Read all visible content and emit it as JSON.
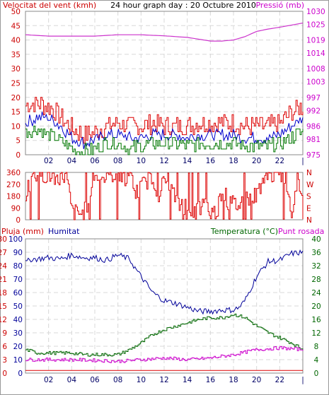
{
  "chart_data": [
    {
      "type": "line",
      "title": "24 hour graph day : 20 Octubre 2010",
      "left_axis_label": "Velocitat del vent (kmh)",
      "right_axis_label": "Pressió (mb)",
      "x_ticks": [
        "02",
        "04",
        "06",
        "08",
        "10",
        "12",
        "14",
        "16",
        "18",
        "20",
        "22",
        "|"
      ],
      "left_ticks": [
        0,
        5,
        10,
        15,
        20,
        25,
        30,
        35,
        40,
        45,
        50
      ],
      "right_ticks": [
        975,
        981,
        986,
        992,
        997,
        1003,
        1008,
        1014,
        1019,
        1025,
        1030
      ],
      "ylim_left": [
        0,
        50
      ],
      "ylim_right": [
        975,
        1030
      ],
      "grid": true,
      "colors": {
        "axis_left": "#cc0000",
        "axis_right": "#cc00cc",
        "title": "#000000",
        "gust": "#dd0000",
        "average": "#0000cc",
        "low": "#007700",
        "pressure": "#cc33cc"
      },
      "series": [
        {
          "name": "gust",
          "color": "#dd0000",
          "hours": [
            0,
            1,
            2,
            3,
            4,
            5,
            6,
            7,
            8,
            9,
            10,
            11,
            12,
            13,
            14,
            15,
            16,
            17,
            18,
            19,
            20,
            21,
            22,
            23,
            24
          ],
          "values": [
            17,
            18,
            17,
            13,
            9,
            7,
            8,
            10,
            11,
            10,
            10,
            11,
            10,
            10,
            10,
            11,
            11,
            11,
            11,
            10,
            10,
            10,
            11,
            15,
            17
          ]
        },
        {
          "name": "average",
          "color": "#0000cc",
          "hours": [
            0,
            1,
            2,
            3,
            4,
            5,
            6,
            7,
            8,
            9,
            10,
            11,
            12,
            13,
            14,
            15,
            16,
            17,
            18,
            19,
            20,
            21,
            22,
            23,
            24
          ],
          "values": [
            11,
            13,
            13,
            10,
            6,
            4,
            5,
            7,
            7,
            6,
            6,
            7,
            7,
            7,
            6,
            7,
            7,
            7,
            7,
            6,
            6,
            6,
            7,
            10,
            13
          ]
        },
        {
          "name": "low",
          "color": "#007700",
          "hours": [
            0,
            1,
            2,
            3,
            4,
            5,
            6,
            7,
            8,
            9,
            10,
            11,
            12,
            13,
            14,
            15,
            16,
            17,
            18,
            19,
            20,
            21,
            22,
            23,
            24
          ],
          "values": [
            8,
            9,
            7,
            5,
            2,
            1,
            2,
            4,
            4,
            2,
            3,
            4,
            4,
            4,
            3,
            4,
            4,
            4,
            4,
            3,
            3,
            3,
            4,
            6,
            8
          ]
        },
        {
          "name": "pressure",
          "color": "#cc33cc",
          "axis": "right",
          "hours": [
            0,
            2,
            4,
            6,
            8,
            10,
            12,
            14,
            15,
            16,
            17,
            18,
            19,
            20,
            21,
            22,
            23,
            24
          ],
          "values": [
            1021,
            1020.5,
            1020.5,
            1020.5,
            1021,
            1021,
            1020.6,
            1020,
            1019.3,
            1018.6,
            1018.6,
            1019,
            1020.3,
            1022.3,
            1023.2,
            1023.9,
            1024.7,
            1025.5
          ]
        }
      ]
    },
    {
      "type": "scatter",
      "title": "",
      "left_ticks": [
        0,
        90,
        180,
        270,
        360
      ],
      "right_ticks": [
        "N",
        "E",
        "S",
        "W",
        "N"
      ],
      "ylim": [
        0,
        360
      ],
      "colors": {
        "axis": "#cc0000",
        "series": "#dd0000"
      },
      "series": [
        {
          "name": "direction",
          "color": "#dd0000",
          "hours": [
            0,
            0.5,
            1,
            1.5,
            2,
            2.5,
            3,
            3.5,
            4,
            4.5,
            5,
            5.5,
            6,
            6.5,
            7,
            7.5,
            8,
            8.5,
            9,
            9.5,
            10,
            10.5,
            11,
            11.5,
            12,
            12.5,
            13,
            13.5,
            14,
            14.5,
            15,
            15.5,
            16,
            16.5,
            17,
            17.5,
            18,
            18.5,
            19,
            19.5,
            20,
            20.5,
            21,
            21.5,
            22,
            22.5,
            23,
            23.5,
            24
          ],
          "values": [
            200,
            340,
            350,
            340,
            345,
            300,
            340,
            330,
            60,
            50,
            40,
            180,
            330,
            340,
            300,
            345,
            350,
            320,
            340,
            200,
            250,
            300,
            320,
            200,
            300,
            250,
            150,
            100,
            120,
            50,
            80,
            120,
            50,
            60,
            240,
            130,
            120,
            110,
            180,
            150,
            200,
            310,
            330,
            350,
            330,
            340,
            40,
            350,
            120
          ]
        }
      ]
    },
    {
      "type": "line",
      "title": "",
      "left_axis_label": "Pluja (mm)",
      "left2_axis_label": "Humitat",
      "right_axis_label": "Temperatura (°C)",
      "right2_axis_label": "Punt rosada",
      "left_ticks": [
        0,
        3,
        6,
        9,
        12,
        15,
        18,
        21,
        24,
        27,
        30
      ],
      "left2_ticks": [
        0,
        10,
        20,
        30,
        40,
        50,
        60,
        70,
        80,
        90,
        100
      ],
      "right_ticks": [
        0,
        4,
        8,
        12,
        16,
        20,
        24,
        28,
        32,
        36,
        40
      ],
      "ylim_left": [
        0,
        30
      ],
      "ylim_humidity": [
        0,
        100
      ],
      "ylim_right": [
        0,
        40
      ],
      "grid": true,
      "colors": {
        "rain": "#cc0000",
        "humidity": "#000099",
        "temperature": "#006600",
        "dew_point": "#cc00cc"
      },
      "series": [
        {
          "name": "rain",
          "color": "#dd0000",
          "hours": [
            0,
            24
          ],
          "values": [
            0.6,
            0.6
          ]
        },
        {
          "name": "humidity",
          "color": "#000099",
          "hours": [
            0,
            0.5,
            1,
            2,
            3,
            4,
            5,
            6,
            7,
            8,
            9,
            9.5,
            10,
            11,
            12,
            13,
            14,
            15,
            16,
            17,
            18,
            18.5,
            19,
            19.5,
            20,
            21,
            22,
            23,
            24
          ],
          "values": [
            82,
            85,
            85,
            86,
            85,
            88,
            86,
            86,
            84,
            88,
            85,
            78,
            72,
            60,
            54,
            52,
            49,
            46,
            46,
            47,
            47,
            49,
            54,
            63,
            72,
            83,
            84,
            89,
            90
          ]
        },
        {
          "name": "temperature",
          "color": "#006600",
          "hours": [
            0,
            1,
            2,
            3,
            4,
            5,
            6,
            7,
            8,
            9,
            10,
            11,
            12,
            13,
            14,
            15,
            16,
            17,
            18,
            19,
            20,
            21,
            22,
            23,
            24
          ],
          "values": [
            7,
            6,
            6,
            6,
            6,
            5.5,
            5.5,
            5.5,
            5.5,
            7,
            9,
            11.5,
            13,
            14,
            15,
            16,
            16.5,
            16.5,
            17.5,
            16.5,
            14,
            12,
            10.5,
            9,
            7
          ]
        },
        {
          "name": "dew_point",
          "color": "#cc00cc",
          "hours": [
            0,
            2,
            4,
            6,
            8,
            10,
            12,
            14,
            16,
            18,
            20,
            22,
            24
          ],
          "values": [
            4,
            4,
            4,
            3.8,
            3.5,
            4,
            4.5,
            4,
            4.5,
            5.5,
            7,
            7.5,
            7
          ]
        }
      ]
    }
  ]
}
